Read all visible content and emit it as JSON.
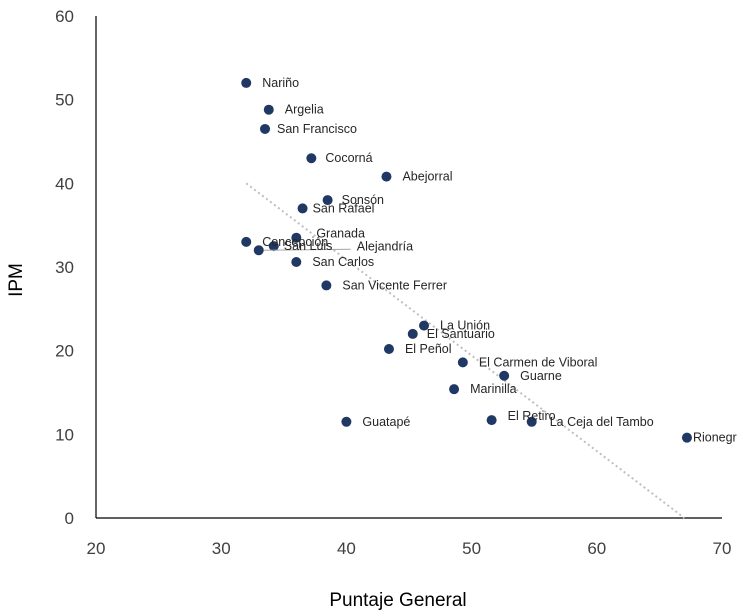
{
  "chart_data": {
    "type": "scatter",
    "title": "",
    "xlabel": "Puntaje General",
    "ylabel": "IPM",
    "xlim": [
      20,
      70
    ],
    "ylim": [
      0,
      60
    ],
    "x_ticks": [
      "20",
      "30",
      "40",
      "50",
      "60",
      "70"
    ],
    "y_ticks": [
      "0",
      "10",
      "20",
      "30",
      "40",
      "50",
      "60"
    ],
    "grid": false,
    "legend": "none",
    "marker_color": "#1f3864",
    "trendline": {
      "style": "dotted",
      "color": "#bfbfbf",
      "from": [
        32,
        40.0
      ],
      "to": [
        67,
        0
      ]
    },
    "points": [
      {
        "label": "Nariño",
        "x": 32.0,
        "y": 52.0
      },
      {
        "label": "Argelia",
        "x": 33.8,
        "y": 48.8
      },
      {
        "label": "San Francisco",
        "x": 33.5,
        "y": 46.5
      },
      {
        "label": "Cocorná",
        "x": 37.2,
        "y": 43.0
      },
      {
        "label": "Abejorral",
        "x": 43.2,
        "y": 40.8
      },
      {
        "label": "Sonsón",
        "x": 38.5,
        "y": 38.0
      },
      {
        "label": "San Rafael",
        "x": 36.5,
        "y": 37.0
      },
      {
        "label": "Granada",
        "x": 36.0,
        "y": 33.5
      },
      {
        "label": "Concepción",
        "x": 32.0,
        "y": 33.0
      },
      {
        "label": "San Luis",
        "x": 34.2,
        "y": 32.5
      },
      {
        "label": "Alejandría",
        "x": 33.0,
        "y": 32.0
      },
      {
        "label": "San Carlos",
        "x": 36.0,
        "y": 30.6
      },
      {
        "label": "San Vicente Ferrer",
        "x": 38.4,
        "y": 27.8
      },
      {
        "label": "La Unión",
        "x": 46.2,
        "y": 23.0
      },
      {
        "label": "El Santuario",
        "x": 45.3,
        "y": 22.0
      },
      {
        "label": "El Peñol",
        "x": 43.4,
        "y": 20.2
      },
      {
        "label": "El Carmen de Viboral",
        "x": 49.3,
        "y": 18.6
      },
      {
        "label": "Guarne",
        "x": 52.6,
        "y": 17.0
      },
      {
        "label": "Marinilla",
        "x": 48.6,
        "y": 15.4
      },
      {
        "label": "Guatapé",
        "x": 40.0,
        "y": 11.5
      },
      {
        "label": "El Retiro",
        "x": 51.6,
        "y": 11.7
      },
      {
        "label": "La Ceja del Tambo",
        "x": 54.8,
        "y": 11.5
      },
      {
        "label": "Rionegro",
        "x": 67.2,
        "y": 9.6
      }
    ]
  }
}
